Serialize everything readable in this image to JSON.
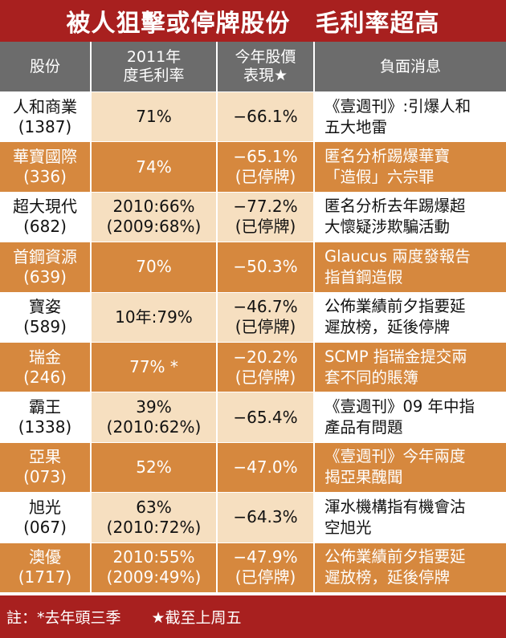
{
  "title": "被人狙擊或停牌股份　毛利率超高",
  "headers": {
    "stock": "股份",
    "profit": [
      "2011年",
      "度毛利率"
    ],
    "perf": [
      "今年股價",
      "表現★"
    ],
    "news": "負面消息"
  },
  "rows": [
    {
      "name": "人和商業",
      "code": "(1387)",
      "profit": [
        "71%"
      ],
      "perf": [
        "−66.1%"
      ],
      "news": [
        "《壹週刊》:引爆人和",
        "五大地雷"
      ]
    },
    {
      "name": "華寶國際",
      "code": "(336)",
      "profit": [
        "74%"
      ],
      "perf": [
        "−65.1%",
        "(已停牌)"
      ],
      "news": [
        "匿名分析踢爆華寶",
        "「造假」六宗罪"
      ]
    },
    {
      "name": "超大現代",
      "code": "(682)",
      "profit": [
        "2010:66%",
        "(2009:68%)"
      ],
      "perf": [
        "−77.2%",
        "(已停牌)"
      ],
      "news": [
        "匿名分析去年踢爆超",
        "大懷疑涉欺騙活動"
      ]
    },
    {
      "name": "首鋼資源",
      "code": "(639)",
      "profit": [
        "70%"
      ],
      "perf": [
        "−50.3%"
      ],
      "news": [
        "Glaucus 兩度發報告",
        "指首鋼造假"
      ]
    },
    {
      "name": "寶姿",
      "code": "(589)",
      "profit": [
        "10年:79%"
      ],
      "perf": [
        "−46.7%",
        "(已停牌)"
      ],
      "news": [
        "公佈業績前夕指要延",
        "遲放榜，延後停牌"
      ]
    },
    {
      "name": "瑞金",
      "code": "(246)",
      "profit": [
        "77% *"
      ],
      "perf": [
        "−20.2%",
        "(已停牌)"
      ],
      "news": [
        "SCMP 指瑞金提交兩",
        "套不同的賬簿"
      ]
    },
    {
      "name": "霸王",
      "code": "(1338)",
      "profit": [
        "39%",
        "(2010:62%)"
      ],
      "perf": [
        "−65.4%"
      ],
      "news": [
        "《壹週刊》09 年中指",
        "產品有問題"
      ]
    },
    {
      "name": "亞果",
      "code": "(073)",
      "profit": [
        "52%"
      ],
      "perf": [
        "−47.0%"
      ],
      "news": [
        "《壹週刊》今年兩度",
        "揭亞果醜聞"
      ]
    },
    {
      "name": "旭光",
      "code": "(067)",
      "profit": [
        "63%",
        "(2010:72%)"
      ],
      "perf": [
        "−64.3%"
      ],
      "news": [
        "渾水機構指有機會沽",
        "空旭光"
      ]
    },
    {
      "name": "澳優",
      "code": "(1717)",
      "profit": [
        "2010:55%",
        "(2009:49%)"
      ],
      "perf": [
        "−47.9%",
        "(已停牌)"
      ],
      "news": [
        "公佈業績前夕指要延",
        "遲放榜，延後停牌"
      ]
    }
  ],
  "footer": "註：*去年頭三季　　★截至上周五"
}
